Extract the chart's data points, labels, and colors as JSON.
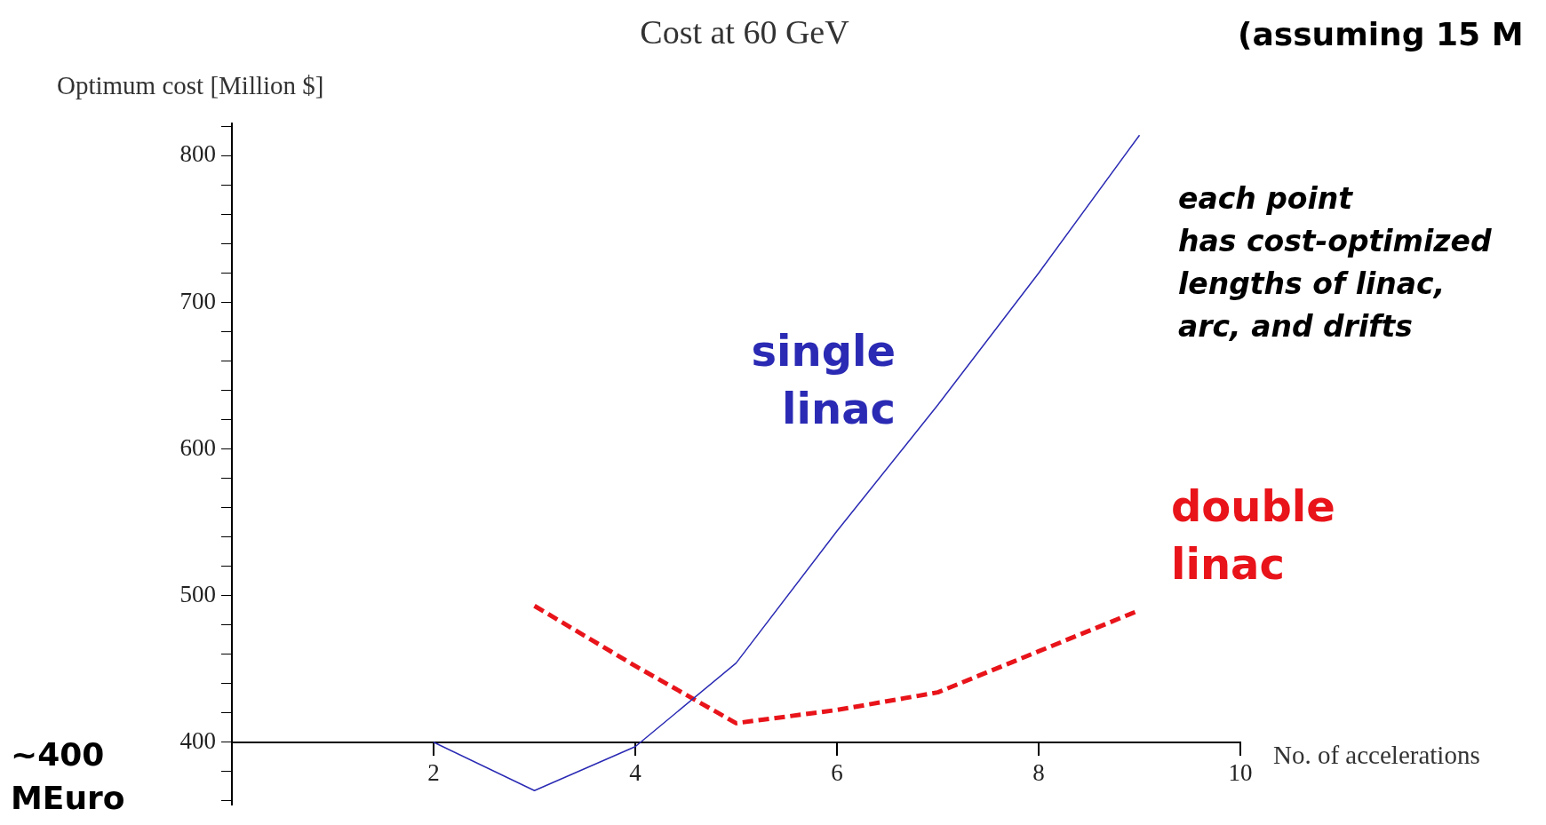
{
  "chart_data": {
    "type": "line",
    "title": "Cost at 60 GeV",
    "ylabel": "Optimum cost [Million $]",
    "xlabel": "No. of accelerations",
    "x": [
      2,
      3,
      4,
      5,
      6,
      7,
      8,
      9
    ],
    "series": [
      {
        "name": "single linac",
        "color": "#2a2ab4",
        "line_style": "solid",
        "values": [
          400,
          367,
          397,
          454,
          544,
          630,
          720,
          814
        ]
      },
      {
        "name": "double linac",
        "color": "#e8141a",
        "line_style": "dashed",
        "values": [
          null,
          493,
          452,
          413,
          422,
          434,
          462,
          490
        ]
      }
    ],
    "xlim": [
      0,
      10
    ],
    "xticks": [
      2,
      4,
      6,
      8,
      10
    ],
    "ylim": [
      357,
      822
    ],
    "yticks": [
      {
        "value": 360,
        "label": null
      },
      {
        "value": 380,
        "label": null
      },
      400,
      {
        "value": 420,
        "label": null
      },
      {
        "value": 440,
        "label": null
      },
      {
        "value": 460,
        "label": null
      },
      {
        "value": 480,
        "label": null
      },
      500,
      {
        "value": 520,
        "label": null
      },
      {
        "value": 540,
        "label": null
      },
      {
        "value": 560,
        "label": null
      },
      {
        "value": 580,
        "label": null
      },
      600,
      {
        "value": 620,
        "label": null
      },
      {
        "value": 640,
        "label": null
      },
      {
        "value": 660,
        "label": null
      },
      {
        "value": 680,
        "label": null
      },
      700,
      {
        "value": 720,
        "label": null
      },
      {
        "value": 740,
        "label": null
      },
      {
        "value": 760,
        "label": null
      },
      {
        "value": 780,
        "label": null
      },
      800,
      {
        "value": 820,
        "label": null
      }
    ],
    "grid": false,
    "legend": false,
    "marker": "none",
    "annotations": [
      "(assuming 15 M",
      "each point\nhas cost-optimized\nlengths of linac,\narc, and drifts",
      "~400\nMEuro"
    ]
  }
}
